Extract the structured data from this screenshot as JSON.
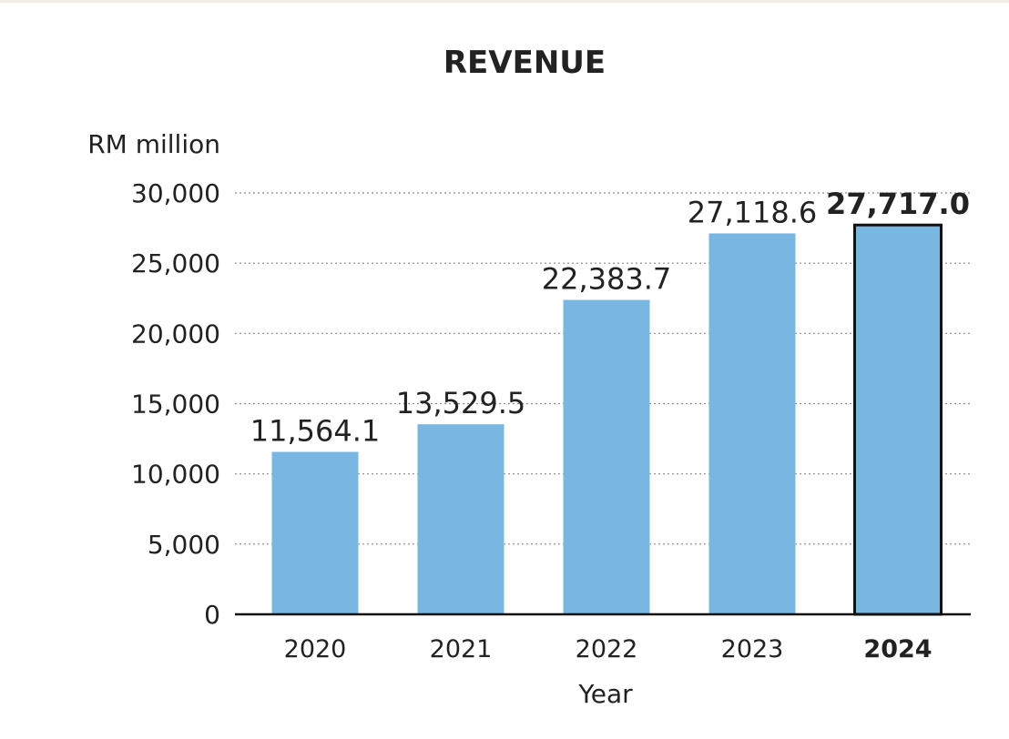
{
  "chart_data": {
    "type": "bar",
    "title": "REVENUE",
    "unit_label": "RM million",
    "xlabel": "Year",
    "ylabel": "",
    "categories": [
      "2020",
      "2021",
      "2022",
      "2023",
      "2024"
    ],
    "values": [
      11564.1,
      13529.5,
      22383.7,
      27118.6,
      27717.0
    ],
    "value_labels": [
      "11,564.1",
      "13,529.5",
      "22,383.7",
      "27,118.6",
      "27,717.0"
    ],
    "highlighted_category": "2024",
    "ylim": [
      0,
      30000
    ],
    "yticks": [
      0,
      5000,
      10000,
      15000,
      20000,
      25000,
      30000
    ],
    "ytick_labels": [
      "0",
      "5,000",
      "10,000",
      "15,000",
      "20,000",
      "25,000",
      "30,000"
    ],
    "grid": "dotted horizontal",
    "bar_color": "#7ab6e2",
    "highlight_outline_color": "#111111"
  }
}
